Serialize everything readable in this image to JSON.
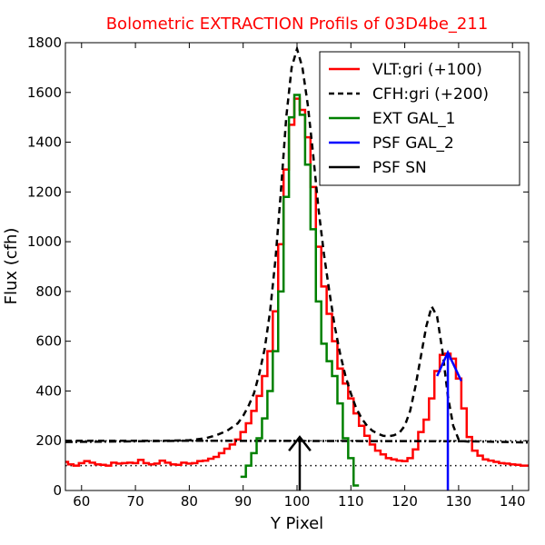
{
  "chart_data": {
    "type": "line",
    "title": "Bolometric EXTRACTION Profils of 03D4be_211",
    "title_color": "#ff0000",
    "xlabel": "Y Pixel",
    "ylabel": "Flux (cfh)",
    "xlim": [
      57,
      143
    ],
    "ylim": [
      0,
      1800
    ],
    "xticks": [
      60,
      70,
      80,
      90,
      100,
      110,
      120,
      130,
      140
    ],
    "yticks": [
      0,
      200,
      400,
      600,
      800,
      1000,
      1200,
      1400,
      1600,
      1800
    ],
    "grid": false,
    "legend_position": "top-right",
    "reference_lines": [
      {
        "y": 100,
        "style": "dotted",
        "color": "#000000"
      },
      {
        "y": 200,
        "style": "dotted",
        "color": "#000000"
      }
    ],
    "series": [
      {
        "name": "VLT:gri (+100)",
        "color": "#ff0000",
        "style": "steps",
        "x": [
          57,
          58,
          59,
          60,
          61,
          62,
          63,
          64,
          65,
          66,
          67,
          68,
          69,
          70,
          71,
          72,
          73,
          74,
          75,
          76,
          77,
          78,
          79,
          80,
          81,
          82,
          83,
          84,
          85,
          86,
          87,
          88,
          89,
          90,
          91,
          92,
          93,
          94,
          95,
          96,
          97,
          98,
          99,
          100,
          101,
          102,
          103,
          104,
          105,
          106,
          107,
          108,
          109,
          110,
          111,
          112,
          113,
          114,
          115,
          116,
          117,
          118,
          119,
          120,
          121,
          122,
          123,
          124,
          125,
          126,
          127,
          128,
          129,
          130,
          131,
          132,
          133,
          134,
          135,
          136,
          137,
          138,
          139,
          140,
          141,
          142,
          143
        ],
        "y": [
          115,
          105,
          100,
          110,
          118,
          112,
          105,
          103,
          100,
          112,
          108,
          110,
          112,
          110,
          123,
          110,
          105,
          108,
          120,
          112,
          105,
          103,
          112,
          108,
          110,
          118,
          120,
          128,
          135,
          150,
          168,
          185,
          205,
          235,
          270,
          320,
          380,
          460,
          560,
          720,
          990,
          1290,
          1470,
          1575,
          1530,
          1420,
          1220,
          980,
          820,
          710,
          600,
          490,
          430,
          370,
          310,
          260,
          220,
          185,
          160,
          145,
          130,
          125,
          120,
          118,
          130,
          165,
          235,
          285,
          370,
          480,
          545,
          550,
          530,
          450,
          330,
          215,
          160,
          140,
          125,
          120,
          115,
          110,
          108,
          105,
          103,
          100,
          100
        ]
      },
      {
        "name": "CFH:gri (+200)",
        "color": "#000000",
        "style": "dashed",
        "x": [
          57,
          60,
          65,
          70,
          75,
          80,
          83,
          85,
          87,
          89,
          90,
          91,
          92,
          93,
          94,
          95,
          96,
          97,
          98,
          99,
          100,
          101,
          102,
          103,
          104,
          105,
          106,
          107,
          108,
          109,
          110,
          111,
          112,
          113,
          114,
          115,
          116,
          117,
          118,
          119,
          120,
          121,
          122,
          123,
          124,
          125,
          126,
          127,
          128,
          129,
          130,
          131,
          132
        ],
        "y": [
          200,
          200,
          200,
          200,
          200,
          202,
          210,
          222,
          240,
          270,
          300,
          340,
          390,
          470,
          570,
          720,
          930,
          1200,
          1500,
          1700,
          1775,
          1700,
          1550,
          1350,
          1130,
          950,
          800,
          660,
          550,
          460,
          390,
          330,
          290,
          260,
          240,
          228,
          220,
          218,
          222,
          232,
          260,
          320,
          420,
          540,
          660,
          740,
          700,
          560,
          380,
          260,
          205,
          198,
          196
        ]
      },
      {
        "name": "",
        "color": "#000000",
        "style": "dashdot",
        "x": [
          57,
          80,
          132,
          143
        ],
        "y": [
          195,
          200,
          198,
          193
        ]
      },
      {
        "name": "EXT GAL_1",
        "color": "#008000",
        "style": "steps",
        "x": [
          90,
          91,
          92,
          93,
          94,
          95,
          96,
          97,
          98,
          99,
          100,
          101,
          102,
          103,
          104,
          105,
          106,
          107,
          108,
          109,
          110,
          111
        ],
        "y": [
          55,
          100,
          150,
          210,
          290,
          400,
          560,
          800,
          1180,
          1500,
          1590,
          1510,
          1310,
          1050,
          760,
          590,
          520,
          460,
          350,
          210,
          130,
          20
        ]
      },
      {
        "name": "PSF GAL_2",
        "color": "#0000ff",
        "style": "line",
        "x": [
          126,
          128,
          130.5
        ],
        "y": [
          460,
          555,
          440
        ],
        "marker_x": 128,
        "marker_y": 550
      },
      {
        "name": "PSF SN",
        "color": "#000000",
        "style": "line",
        "x": [
          98.5,
          100.5,
          102.5
        ],
        "y": [
          160,
          215,
          160
        ],
        "marker_x": 100.5,
        "marker_y": 215
      }
    ]
  }
}
